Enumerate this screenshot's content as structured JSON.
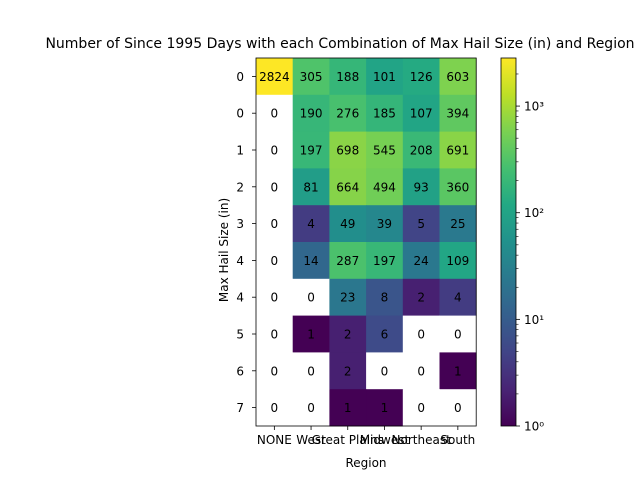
{
  "chart_data": {
    "type": "heatmap",
    "title": "Number of Since 1995 Days with each Combination of Max Hail Size (in) and Region",
    "xlabel": "Region",
    "ylabel": "Max Hail Size (in)",
    "x_categories": [
      "NONE",
      "West",
      "Great Plains",
      "Midwest",
      "Northeast",
      "South"
    ],
    "y_categories": [
      "0",
      "0",
      "1",
      "2",
      "3",
      "4",
      "4",
      "5",
      "6",
      "7"
    ],
    "values": [
      [
        2824,
        305,
        188,
        101,
        126,
        603
      ],
      [
        0,
        190,
        276,
        185,
        107,
        394
      ],
      [
        0,
        197,
        698,
        545,
        208,
        691
      ],
      [
        0,
        81,
        664,
        494,
        93,
        360
      ],
      [
        0,
        4,
        49,
        39,
        5,
        25
      ],
      [
        0,
        14,
        287,
        197,
        24,
        109
      ],
      [
        0,
        0,
        23,
        8,
        2,
        4
      ],
      [
        0,
        1,
        2,
        6,
        0,
        0
      ],
      [
        0,
        0,
        2,
        0,
        0,
        1
      ],
      [
        0,
        0,
        1,
        1,
        0,
        0
      ]
    ],
    "colorbar": {
      "scale": "log",
      "colormap": "viridis",
      "range": [
        1,
        2824
      ],
      "tick_values": [
        1,
        10,
        100,
        1000
      ],
      "tick_labels": [
        "10⁰",
        "10¹",
        "10²",
        "10³"
      ]
    },
    "zero_color": "#ffffff",
    "grid": false
  }
}
